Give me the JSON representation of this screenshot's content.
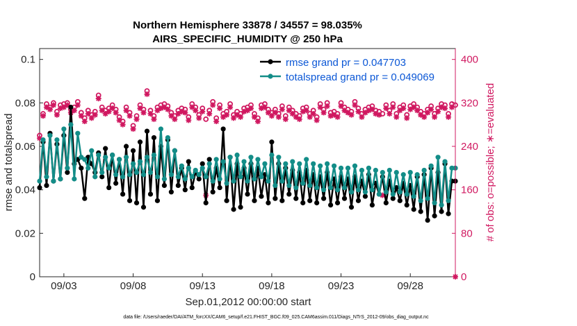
{
  "chart_data": {
    "type": "line",
    "title": [
      "Northern Hemisphere 33878 / 34557 = 98.035%",
      "AIRS_SPECIFIC_HUMIDITY @ 250 hPa"
    ],
    "xlabel": "Sep.01,2012 00:00:00 start",
    "ylabel": "rmse and totalspread",
    "ylabel_right": "# of obs: o=possible; ∗=evaluated",
    "footer": "data file: /Users/raeder/DAI/ATM_forcXX/CAM6_setup/f.e21.FHIST_BGC.f09_025.CAM6assim.011/Diags_NTrS_2012-09/obs_diag_output.nc",
    "x_ticks": [
      {
        "day": 3,
        "label": "09/03"
      },
      {
        "day": 8,
        "label": "09/08"
      },
      {
        "day": 13,
        "label": "09/13"
      },
      {
        "day": 18,
        "label": "09/18"
      },
      {
        "day": 23,
        "label": "09/23"
      },
      {
        "day": 28,
        "label": "09/28"
      }
    ],
    "xlim": [
      1.25,
      31.25
    ],
    "ylim": [
      0,
      0.105
    ],
    "y_ticks": [
      "0",
      "0.02",
      "0.04",
      "0.06",
      "0.08",
      "0.1"
    ],
    "ylim_right": [
      0,
      420
    ],
    "y_ticks_right": [
      "0",
      "80",
      "160",
      "240",
      "320",
      "400"
    ],
    "legend_position": "top-right",
    "colors": {
      "rmse": "#000000",
      "spread": "#138d88",
      "obs": "#d01860",
      "axis": "#262626"
    },
    "x": [
      1.25,
      1.5,
      1.75,
      2.0,
      2.25,
      2.5,
      2.75,
      3.0,
      3.25,
      3.5,
      3.75,
      4.0,
      4.25,
      4.5,
      4.75,
      5.0,
      5.25,
      5.5,
      5.75,
      6.0,
      6.25,
      6.5,
      6.75,
      7.0,
      7.25,
      7.5,
      7.75,
      8.0,
      8.25,
      8.5,
      8.75,
      9.0,
      9.25,
      9.5,
      9.75,
      10.0,
      10.25,
      10.5,
      10.75,
      11.0,
      11.25,
      11.5,
      11.75,
      12.0,
      12.25,
      12.5,
      12.75,
      13.0,
      13.25,
      13.5,
      13.75,
      14.0,
      14.25,
      14.5,
      14.75,
      15.0,
      15.25,
      15.5,
      15.75,
      16.0,
      16.25,
      16.5,
      16.75,
      17.0,
      17.25,
      17.5,
      17.75,
      18.0,
      18.25,
      18.5,
      18.75,
      19.0,
      19.25,
      19.5,
      19.75,
      20.0,
      20.25,
      20.5,
      20.75,
      21.0,
      21.25,
      21.5,
      21.75,
      22.0,
      22.25,
      22.5,
      22.75,
      23.0,
      23.25,
      23.5,
      23.75,
      24.0,
      24.25,
      24.5,
      24.75,
      25.0,
      25.25,
      25.5,
      25.75,
      26.0,
      26.25,
      26.5,
      26.75,
      27.0,
      27.25,
      27.5,
      27.75,
      28.0,
      28.25,
      28.5,
      28.75,
      29.0,
      29.25,
      29.5,
      29.75,
      30.0,
      30.25,
      30.5,
      30.75,
      31.0,
      31.25
    ],
    "series": [
      {
        "name": "rmse",
        "legend": "rmse grand pr = 0.047703",
        "axis": "left",
        "values": [
          0.041,
          0.062,
          0.042,
          0.066,
          0.044,
          0.061,
          0.045,
          0.065,
          0.048,
          0.078,
          0.052,
          0.054,
          0.05,
          0.036,
          0.055,
          0.052,
          0.048,
          0.057,
          0.046,
          0.059,
          0.041,
          0.056,
          0.043,
          0.054,
          0.038,
          0.06,
          0.035,
          0.058,
          0.034,
          0.062,
          0.032,
          0.067,
          0.038,
          0.064,
          0.035,
          0.06,
          0.042,
          0.063,
          0.039,
          0.058,
          0.042,
          0.05,
          0.04,
          0.053,
          0.041,
          0.048,
          0.045,
          0.052,
          0.034,
          0.054,
          0.039,
          0.05,
          0.041,
          0.068,
          0.035,
          0.055,
          0.031,
          0.052,
          0.032,
          0.05,
          0.038,
          0.052,
          0.035,
          0.05,
          0.037,
          0.047,
          0.034,
          0.062,
          0.036,
          0.052,
          0.035,
          0.05,
          0.038,
          0.049,
          0.036,
          0.048,
          0.034,
          0.049,
          0.035,
          0.047,
          0.034,
          0.046,
          0.036,
          0.048,
          0.033,
          0.045,
          0.034,
          0.046,
          0.036,
          0.045,
          0.032,
          0.046,
          0.035,
          0.044,
          0.037,
          0.047,
          0.033,
          0.043,
          0.038,
          0.046,
          0.034,
          0.044,
          0.036,
          0.041,
          0.035,
          0.043,
          0.033,
          0.042,
          0.031,
          0.046,
          0.03,
          0.047,
          0.026,
          0.05,
          0.028,
          0.048,
          0.03,
          0.052,
          0.029,
          0.044,
          0.044
        ]
      },
      {
        "name": "totalspread",
        "legend": "totalspread grand pr = 0.049069",
        "axis": "left",
        "values": [
          0.044,
          0.063,
          0.046,
          0.065,
          0.044,
          0.063,
          0.045,
          0.068,
          0.05,
          0.07,
          0.045,
          0.066,
          0.055,
          0.054,
          0.05,
          0.058,
          0.046,
          0.056,
          0.048,
          0.055,
          0.05,
          0.056,
          0.047,
          0.054,
          0.046,
          0.055,
          0.047,
          0.052,
          0.048,
          0.053,
          0.047,
          0.055,
          0.048,
          0.056,
          0.046,
          0.068,
          0.045,
          0.064,
          0.047,
          0.058,
          0.046,
          0.051,
          0.045,
          0.05,
          0.046,
          0.049,
          0.047,
          0.05,
          0.046,
          0.052,
          0.044,
          0.054,
          0.045,
          0.053,
          0.043,
          0.055,
          0.044,
          0.056,
          0.046,
          0.053,
          0.044,
          0.055,
          0.045,
          0.054,
          0.046,
          0.052,
          0.044,
          0.056,
          0.042,
          0.055,
          0.044,
          0.052,
          0.042,
          0.053,
          0.041,
          0.052,
          0.043,
          0.054,
          0.042,
          0.052,
          0.041,
          0.051,
          0.04,
          0.052,
          0.041,
          0.051,
          0.04,
          0.05,
          0.041,
          0.05,
          0.039,
          0.051,
          0.04,
          0.049,
          0.039,
          0.05,
          0.04,
          0.049,
          0.038,
          0.048,
          0.039,
          0.049,
          0.038,
          0.048,
          0.039,
          0.047,
          0.038,
          0.048,
          0.037,
          0.047,
          0.035,
          0.049,
          0.036,
          0.051,
          0.034,
          0.055,
          0.033,
          0.053,
          0.035,
          0.05,
          0.05
        ]
      },
      {
        "name": "possible",
        "legend": "o=possible",
        "axis": "right",
        "values": [
          260,
          300,
          318,
          312,
          320,
          304,
          316,
          318,
          320,
          308,
          312,
          322,
          302,
          292,
          306,
          298,
          304,
          334,
          312,
          306,
          310,
          316,
          308,
          294,
          286,
          312,
          302,
          278,
          296,
          316,
          308,
          342,
          306,
          296,
          312,
          316,
          318,
          314,
          302,
          296,
          306,
          310,
          308,
          294,
          318,
          312,
          298,
          310,
          290,
          306,
          322,
          292,
          316,
          300,
          304,
          318,
          298,
          304,
          300,
          310,
          312,
          316,
          300,
          292,
          316,
          318,
          308,
          302,
          308,
          300,
          314,
          296,
          312,
          306,
          300,
          296,
          310,
          312,
          300,
          306,
          294,
          318,
          308,
          320,
          302,
          304,
          300,
          320,
          312,
          308,
          304,
          322,
          310,
          300,
          308,
          312,
          314,
          306,
          304,
          300,
          316,
          306,
          318,
          300,
          312,
          316,
          298,
          314,
          318,
          312,
          304,
          300,
          308,
          314,
          300,
          310,
          318,
          316,
          300,
          318,
          316
        ]
      },
      {
        "name": "evaluated",
        "legend": "∗=evaluated",
        "axis": "right",
        "values": [
          255,
          296,
          312,
          308,
          316,
          298,
          310,
          312,
          316,
          302,
          306,
          316,
          296,
          286,
          300,
          292,
          298,
          328,
          306,
          300,
          304,
          310,
          302,
          288,
          280,
          306,
          296,
          272,
          290,
          310,
          302,
          336,
          300,
          290,
          306,
          310,
          312,
          308,
          296,
          290,
          300,
          304,
          302,
          288,
          312,
          306,
          292,
          304,
          150,
          300,
          316,
          286,
          310,
          294,
          298,
          312,
          292,
          298,
          294,
          304,
          306,
          310,
          294,
          286,
          310,
          312,
          302,
          296,
          302,
          294,
          308,
          290,
          306,
          300,
          294,
          290,
          304,
          306,
          294,
          300,
          288,
          312,
          302,
          314,
          296,
          298,
          294,
          314,
          306,
          302,
          298,
          316,
          304,
          294,
          302,
          306,
          308,
          300,
          298,
          150,
          310,
          300,
          312,
          294,
          306,
          310,
          292,
          308,
          312,
          306,
          298,
          294,
          302,
          308,
          294,
          304,
          312,
          310,
          294,
          312,
          0
        ]
      }
    ]
  }
}
